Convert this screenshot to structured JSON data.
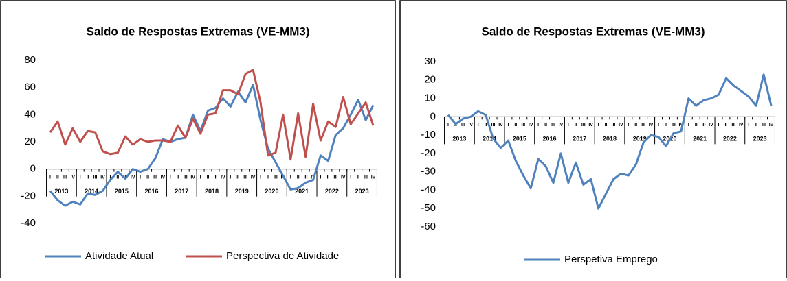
{
  "chart_data": [
    {
      "type": "line",
      "title": "Saldo de Respostas Extremas (VE-MM3)",
      "categories": [
        "I",
        "II",
        "III",
        "IV",
        "I",
        "II",
        "III",
        "IV",
        "I",
        "II",
        "III",
        "IV",
        "I",
        "II",
        "III",
        "IV",
        "I",
        "II",
        "III",
        "IV",
        "I",
        "II",
        "III",
        "IV",
        "I",
        "II",
        "III",
        "IV",
        "I",
        "II",
        "III",
        "IV",
        "I",
        "II",
        "III",
        "IV",
        "I",
        "II",
        "III",
        "IV",
        "I",
        "II",
        "III",
        "IV"
      ],
      "category_groups": [
        "2013",
        "2014",
        "2015",
        "2016",
        "2017",
        "2018",
        "2019",
        "2020",
        "2021",
        "2022",
        "2023"
      ],
      "series": [
        {
          "name": "Atividade Atual",
          "color": "#4f81bd",
          "values": [
            -16,
            -23,
            -27,
            -24,
            -26,
            -18,
            -19,
            -16,
            -8,
            -2,
            -7,
            0,
            -2,
            0,
            8,
            22,
            20,
            22,
            23,
            40,
            28,
            43,
            45,
            52,
            46,
            57,
            49,
            62,
            36,
            15,
            5,
            -5,
            -15,
            -14,
            -10,
            -8,
            10,
            6,
            25,
            30,
            40,
            51,
            36,
            47
          ]
        },
        {
          "name": "Perspectiva de Atividade",
          "color": "#c0504d",
          "values": [
            27,
            35,
            18,
            30,
            20,
            28,
            27,
            13,
            11,
            12,
            24,
            18,
            22,
            20,
            21,
            21,
            20,
            32,
            23,
            37,
            26,
            40,
            41,
            58,
            58,
            55,
            70,
            73,
            49,
            10,
            12,
            40,
            7,
            41,
            9,
            48,
            21,
            35,
            31,
            53,
            33,
            41,
            49,
            32
          ]
        }
      ],
      "ylim": [
        -40,
        80
      ],
      "yticks": [
        -40,
        -20,
        0,
        20,
        40,
        60,
        80
      ],
      "legend": "bottom"
    },
    {
      "type": "line",
      "title": "Saldo de Respostas Extremas (VE-MM3)",
      "categories": [
        "I",
        "II",
        "III",
        "IV",
        "I",
        "II",
        "III",
        "IV",
        "I",
        "II",
        "III",
        "IV",
        "I",
        "II",
        "III",
        "IV",
        "I",
        "II",
        "III",
        "IV",
        "I",
        "II",
        "III",
        "IV",
        "I",
        "II",
        "III",
        "IV",
        "I",
        "II",
        "III",
        "IV",
        "I",
        "II",
        "III",
        "IV",
        "I",
        "II",
        "III",
        "IV",
        "I",
        "II",
        "III",
        "IV"
      ],
      "category_groups": [
        "2013",
        "2014",
        "2015",
        "2016",
        "2017",
        "2018",
        "2019",
        "2020",
        "2021",
        "2022",
        "2023"
      ],
      "series": [
        {
          "name": "Perspetiva Emprego",
          "color": "#4f81bd",
          "values": [
            1,
            -4,
            -1,
            0,
            3,
            1,
            -12,
            -17,
            -13,
            -24,
            -32,
            -39,
            -23,
            -27,
            -36,
            -20,
            -36,
            -25,
            -37,
            -34,
            -50,
            -42,
            -34,
            -31,
            -32,
            -26,
            -14,
            -10,
            -11,
            -16,
            -9,
            -8,
            10,
            6,
            9,
            10,
            12,
            21,
            17,
            14,
            11,
            6,
            23,
            6
          ]
        }
      ],
      "ylim": [
        -60,
        30
      ],
      "yticks": [
        -60,
        -50,
        -40,
        -30,
        -20,
        -10,
        0,
        10,
        20,
        30
      ],
      "legend": "bottom"
    }
  ]
}
